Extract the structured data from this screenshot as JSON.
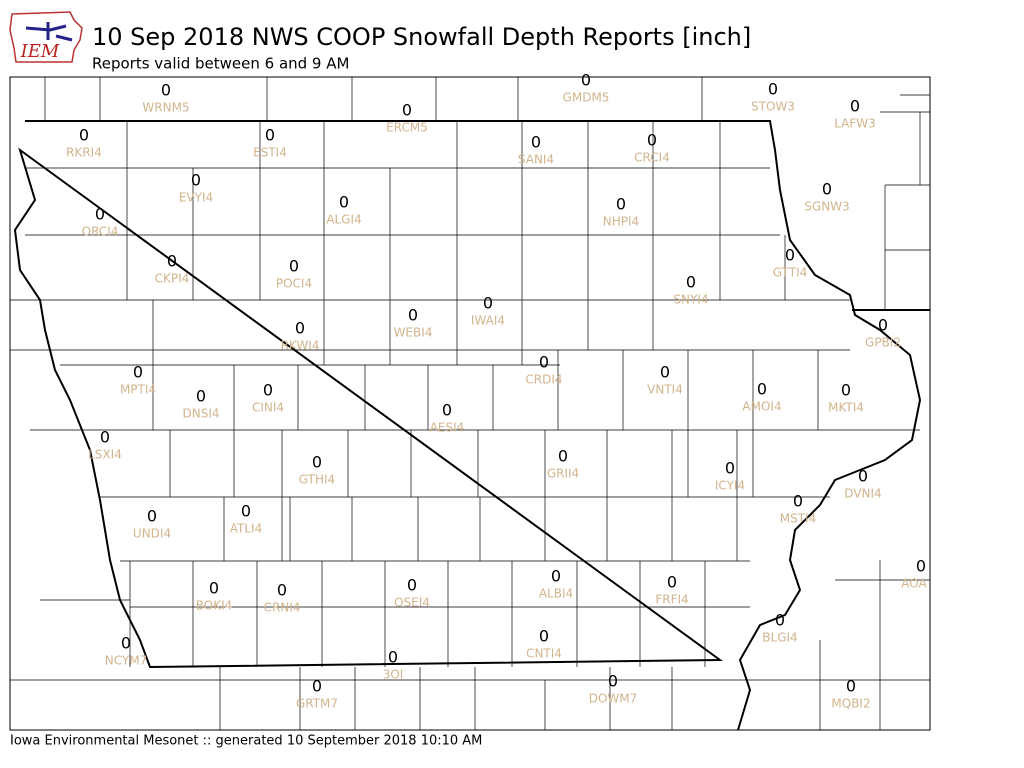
{
  "header": {
    "logo": "IEM",
    "title": "10 Sep 2018 NWS COOP Snowfall Depth Reports [inch]",
    "subtitle": "Reports valid between 6 and 9 AM"
  },
  "stations": [
    {
      "value": 0,
      "label": "WRNM5"
    },
    {
      "value": 0,
      "label": "GMDM5"
    },
    {
      "value": 0,
      "label": "STOW3"
    },
    {
      "value": 0,
      "label": "LAFW3"
    },
    {
      "value": 0,
      "label": "ERCM5"
    },
    {
      "value": 0,
      "label": "RKRI4"
    },
    {
      "value": 0,
      "label": "ESTI4"
    },
    {
      "value": 0,
      "label": "SANI4"
    },
    {
      "value": 0,
      "label": "CRCI4"
    },
    {
      "value": 0,
      "label": "SGNW3"
    },
    {
      "value": 0,
      "label": "EVYI4"
    },
    {
      "value": 0,
      "label": "ALGI4"
    },
    {
      "value": 0,
      "label": "NHPI4"
    },
    {
      "value": 0,
      "label": "ORCI4"
    },
    {
      "value": 0,
      "label": "GTTI4"
    },
    {
      "value": 0,
      "label": "CKPI4"
    },
    {
      "value": 0,
      "label": "POCI4"
    },
    {
      "value": 0,
      "label": "SNYI4"
    },
    {
      "value": 0,
      "label": "IWAI4"
    },
    {
      "value": 0,
      "label": "WEBI4"
    },
    {
      "value": 0,
      "label": "RKWI4"
    },
    {
      "value": 0,
      "label": "GPBI2"
    },
    {
      "value": 0,
      "label": "CRDI4"
    },
    {
      "value": 0,
      "label": "MPTI4"
    },
    {
      "value": 0,
      "label": "VNTI4"
    },
    {
      "value": 0,
      "label": "AMOI4"
    },
    {
      "value": 0,
      "label": "MKTI4"
    },
    {
      "value": 0,
      "label": "CINI4"
    },
    {
      "value": 0,
      "label": "DNSI4"
    },
    {
      "value": 0,
      "label": "AESI4"
    },
    {
      "value": 0,
      "label": "LSXI4"
    },
    {
      "value": 0,
      "label": "GRII4"
    },
    {
      "value": 0,
      "label": "GTHI4"
    },
    {
      "value": 0,
      "label": "ICYI4"
    },
    {
      "value": 0,
      "label": "DVNI4"
    },
    {
      "value": 0,
      "label": "MSTI4"
    },
    {
      "value": 0,
      "label": "ATLI4"
    },
    {
      "value": 0,
      "label": "UNDI4"
    },
    {
      "value": 0,
      "label": "AOA"
    },
    {
      "value": 0,
      "label": "ALBI4"
    },
    {
      "value": 0,
      "label": "FRFI4"
    },
    {
      "value": 0,
      "label": "OSEI4"
    },
    {
      "value": 0,
      "label": "BOKI4"
    },
    {
      "value": 0,
      "label": "CRNI4"
    },
    {
      "value": 0,
      "label": "BLGI4"
    },
    {
      "value": 0,
      "label": "CNTI4"
    },
    {
      "value": 0,
      "label": "NCYM7"
    },
    {
      "value": 0,
      "label": "3OI"
    },
    {
      "value": 0,
      "label": "DOWM7"
    },
    {
      "value": 0,
      "label": "GRTM7"
    },
    {
      "value": 0,
      "label": "MQBI2"
    }
  ],
  "footer": "Iowa Environmental Mesonet :: generated 10 September 2018 10:10 AM"
}
